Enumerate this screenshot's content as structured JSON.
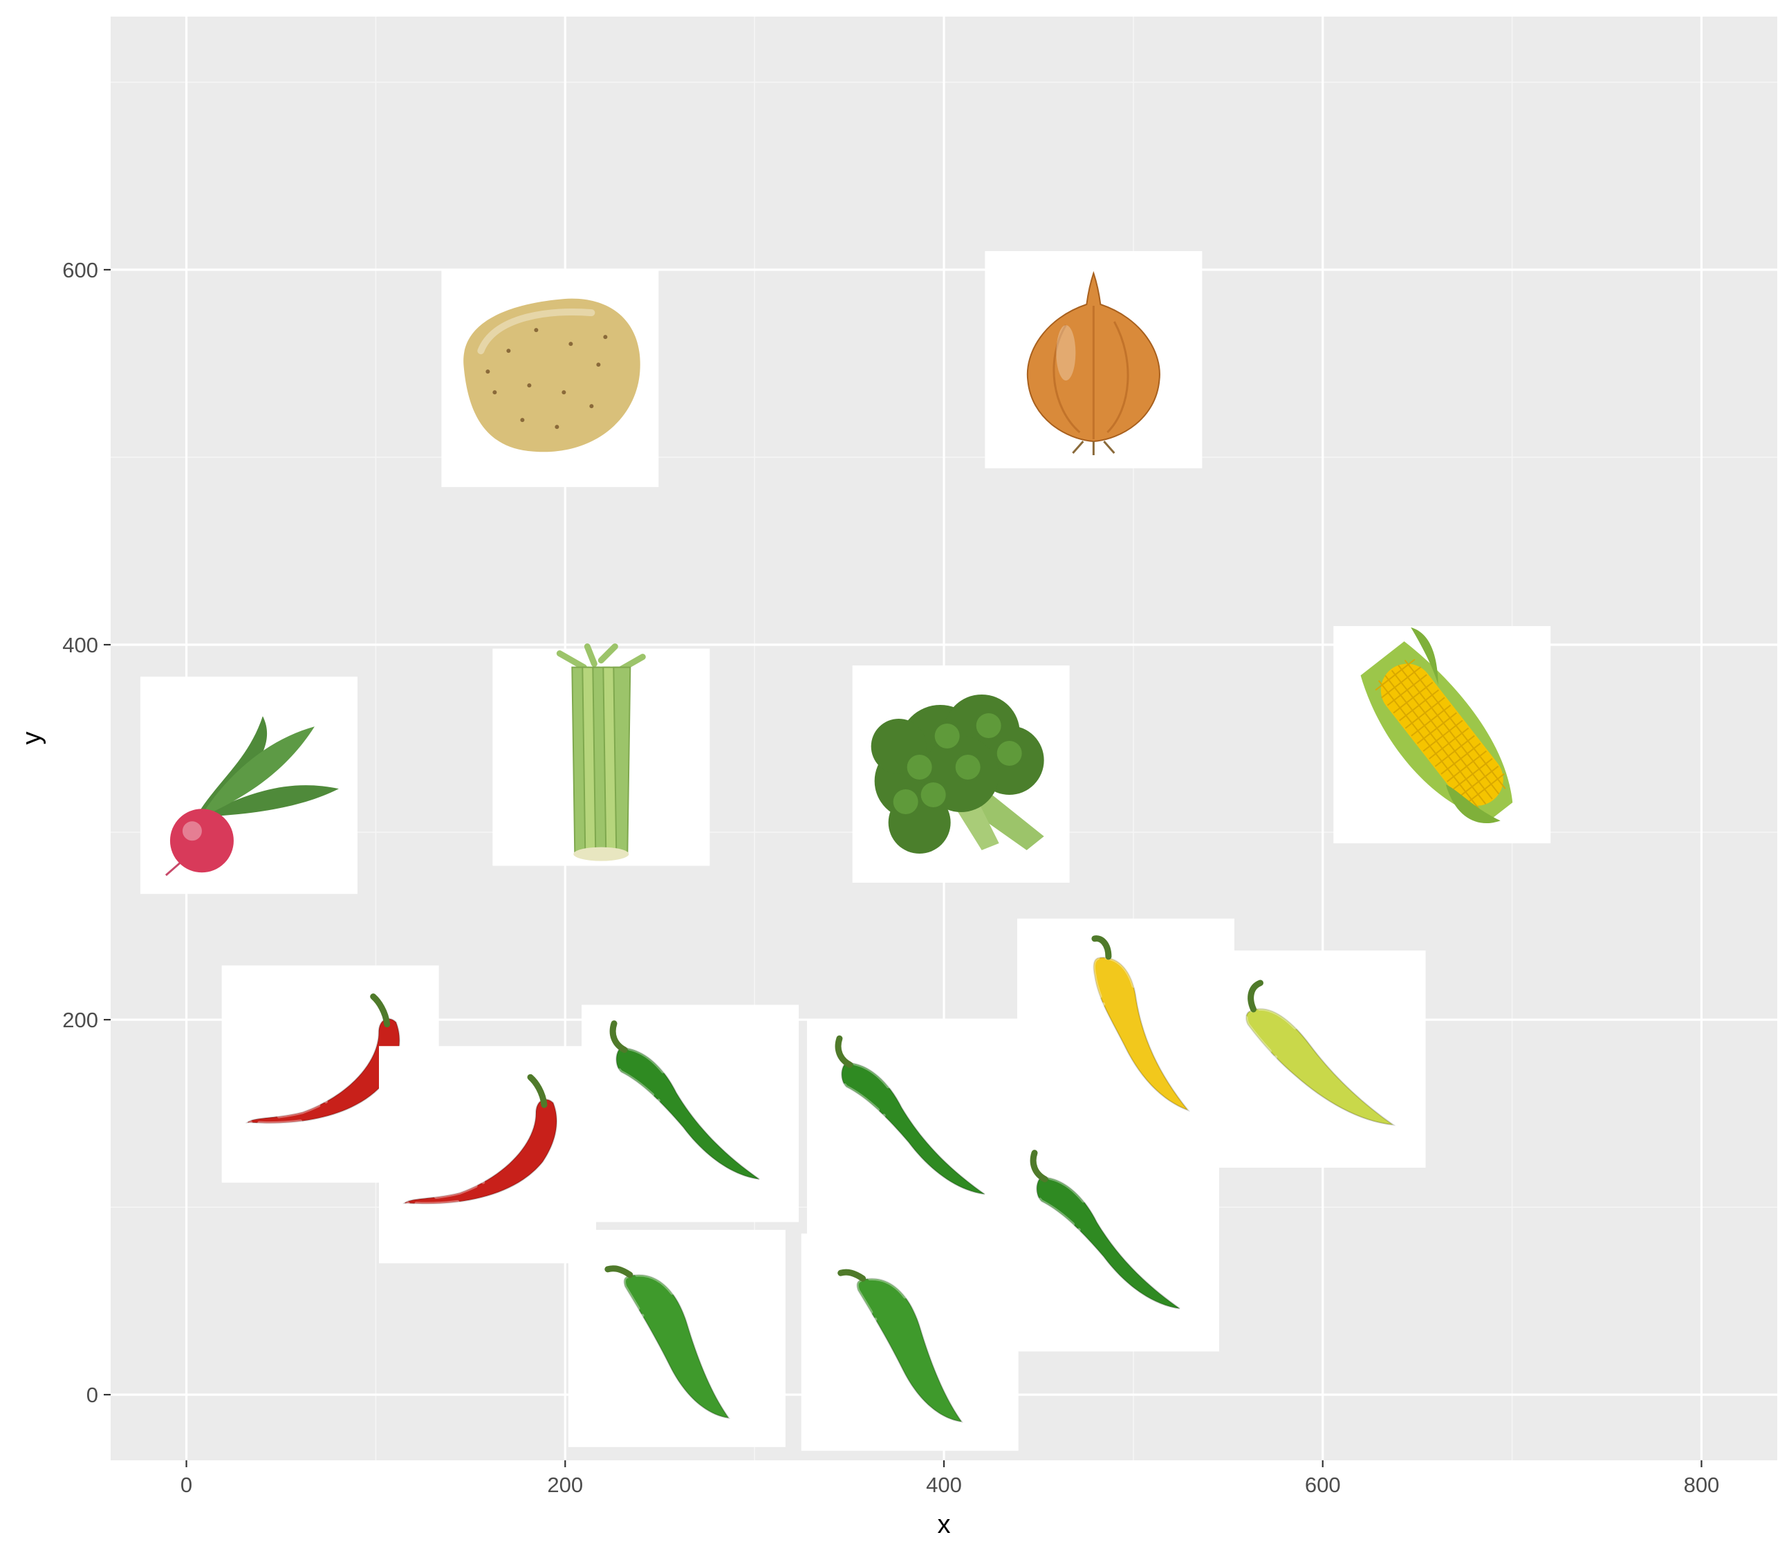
{
  "chart_data": {
    "type": "scatter",
    "marker": "image",
    "title": "",
    "xlabel": "x",
    "ylabel": "y",
    "xlim": [
      -40,
      840
    ],
    "ylim": [
      -35,
      735
    ],
    "x_ticks": [
      0,
      200,
      400,
      600,
      800
    ],
    "y_ticks": [
      0,
      200,
      400,
      600
    ],
    "x_tick_labels": [
      "0",
      "200",
      "400",
      "600",
      "800"
    ],
    "y_tick_labels": [
      "0",
      "200",
      "400",
      "600"
    ],
    "grid": true,
    "legend": "none",
    "points": [
      {
        "item": "radish",
        "x": 33,
        "y": 325
      },
      {
        "item": "potato",
        "x": 192,
        "y": 542
      },
      {
        "item": "celery",
        "x": 219,
        "y": 340
      },
      {
        "item": "onion",
        "x": 479,
        "y": 552
      },
      {
        "item": "broccoli",
        "x": 409,
        "y": 331
      },
      {
        "item": "corn",
        "x": 663,
        "y": 352
      },
      {
        "item": "red-chili-pepper",
        "x": 76,
        "y": 171
      },
      {
        "item": "red-chili-pepper",
        "x": 159,
        "y": 128
      },
      {
        "item": "green-chili-pepper",
        "x": 266,
        "y": 150
      },
      {
        "item": "green-chili-pepper",
        "x": 385,
        "y": 142
      },
      {
        "item": "yellow-chili-pepper",
        "x": 496,
        "y": 196
      },
      {
        "item": "yellow-green-chili-pepper",
        "x": 597,
        "y": 179
      },
      {
        "item": "green-chili-pepper",
        "x": 488,
        "y": 81
      },
      {
        "item": "jalapeno-pepper",
        "x": 259,
        "y": 30
      },
      {
        "item": "jalapeno-pepper",
        "x": 382,
        "y": 28
      }
    ]
  },
  "colors": {
    "panel_background": "#ebebeb",
    "grid_major": "#ffffff",
    "grid_minor": "#f5f5f5",
    "red_pepper": "#c8201a",
    "green_pepper": "#2f8a22",
    "yellow_pepper": "#f2c81c",
    "yellow_green_pepper": "#c9d84a",
    "potato": "#d9c07a",
    "onion": "#d98a3a",
    "broccoli": "#4b7f2c",
    "celery": "#9cc46a",
    "corn": "#f5c400",
    "corn_husk": "#9cc64a",
    "radish": "#d83a5a",
    "leaf": "#4f8a3a"
  }
}
